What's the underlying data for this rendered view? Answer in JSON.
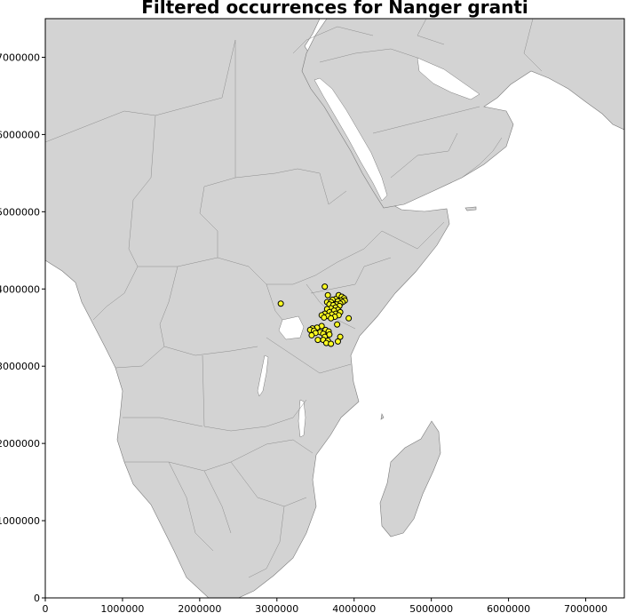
{
  "title": "Filtered occurrences for Nanger granti",
  "chart_data": {
    "type": "scatter",
    "title": "Filtered occurrences for Nanger granti",
    "xlim": [
      0,
      7500000
    ],
    "ylim": [
      0,
      7500000
    ],
    "x_ticks": [
      0,
      1000000,
      2000000,
      3000000,
      4000000,
      5000000,
      6000000,
      7000000
    ],
    "y_ticks": [
      0,
      1000000,
      2000000,
      3000000,
      4000000,
      5000000,
      6000000,
      7000000
    ],
    "x_tick_labels": [
      "0",
      "1000000",
      "2000000",
      "3000000",
      "4000000",
      "5000000",
      "6000000",
      "7000000"
    ],
    "y_tick_labels": [
      "0",
      "1000000",
      "2000000",
      "3000000",
      "4000000",
      "5000000",
      "6000000",
      "7000000"
    ],
    "grid": false,
    "land_color": "#d3d3d3",
    "marker_color": "#ffff22",
    "marker_edge_color": "#000000",
    "points": [
      [
        3620000,
        4030000
      ],
      [
        3660000,
        3920000
      ],
      [
        3800000,
        3920000
      ],
      [
        3840000,
        3900000
      ],
      [
        3870000,
        3880000
      ],
      [
        3760000,
        3870000
      ],
      [
        3720000,
        3860000
      ],
      [
        3880000,
        3850000
      ],
      [
        3830000,
        3850000
      ],
      [
        3790000,
        3840000
      ],
      [
        3650000,
        3830000
      ],
      [
        3700000,
        3830000
      ],
      [
        3850000,
        3830000
      ],
      [
        3820000,
        3810000
      ],
      [
        3770000,
        3800000
      ],
      [
        3050000,
        3810000
      ],
      [
        3680000,
        3800000
      ],
      [
        3730000,
        3790000
      ],
      [
        3810000,
        3780000
      ],
      [
        3760000,
        3760000
      ],
      [
        3700000,
        3750000
      ],
      [
        3650000,
        3740000
      ],
      [
        3790000,
        3730000
      ],
      [
        3740000,
        3720000
      ],
      [
        3680000,
        3700000
      ],
      [
        3820000,
        3700000
      ],
      [
        3620000,
        3680000
      ],
      [
        3760000,
        3680000
      ],
      [
        3710000,
        3670000
      ],
      [
        3580000,
        3660000
      ],
      [
        3800000,
        3660000
      ],
      [
        3660000,
        3650000
      ],
      [
        3930000,
        3620000
      ],
      [
        3750000,
        3640000
      ],
      [
        3610000,
        3630000
      ],
      [
        3700000,
        3620000
      ],
      [
        3780000,
        3540000
      ],
      [
        3580000,
        3520000
      ],
      [
        3520000,
        3500000
      ],
      [
        3460000,
        3490000
      ],
      [
        3430000,
        3470000
      ],
      [
        3480000,
        3460000
      ],
      [
        3630000,
        3470000
      ],
      [
        3670000,
        3450000
      ],
      [
        3560000,
        3440000
      ],
      [
        3500000,
        3430000
      ],
      [
        3600000,
        3420000
      ],
      [
        3680000,
        3410000
      ],
      [
        3450000,
        3400000
      ],
      [
        3620000,
        3380000
      ],
      [
        3820000,
        3380000
      ],
      [
        3530000,
        3340000
      ],
      [
        3600000,
        3340000
      ],
      [
        3660000,
        3330000
      ],
      [
        3790000,
        3320000
      ],
      [
        3640000,
        3300000
      ],
      [
        3700000,
        3290000
      ]
    ]
  }
}
